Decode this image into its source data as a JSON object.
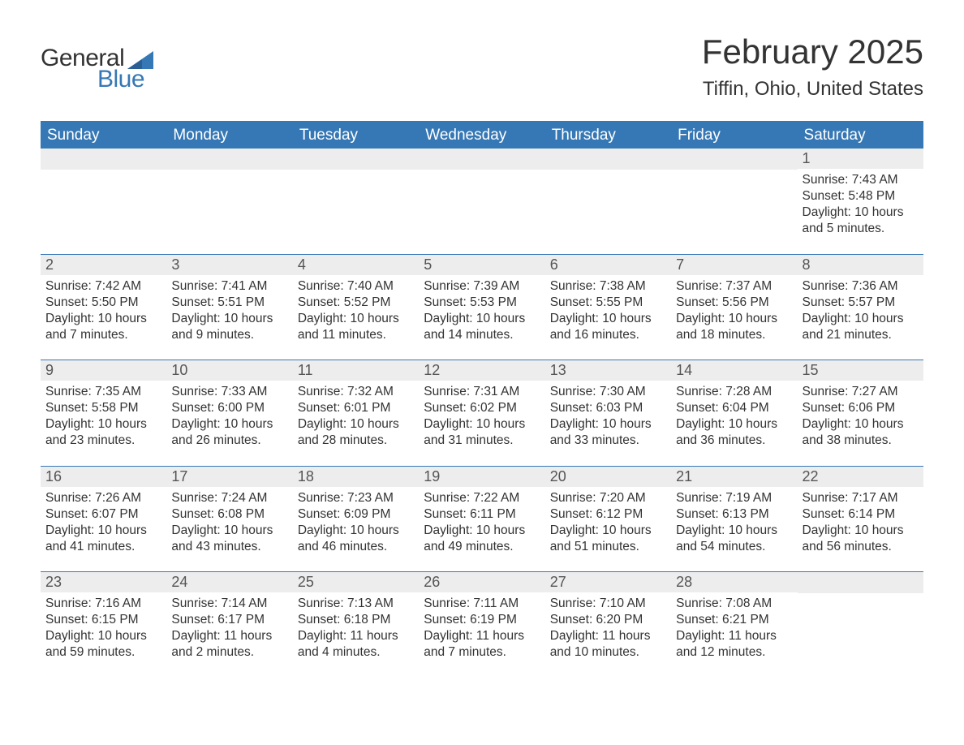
{
  "brand": {
    "part1": "General",
    "part2": "Blue",
    "accent_color": "#3678b5"
  },
  "title": "February 2025",
  "location": "Tiffin, Ohio, United States",
  "colors": {
    "header_bg": "#3678b5",
    "header_text": "#ffffff",
    "daynum_bg": "#ededed",
    "text": "#333333",
    "rule": "#3678b5"
  },
  "fonts": {
    "title_size": 42,
    "location_size": 24,
    "header_size": 19,
    "body_size": 15.5
  },
  "weekdays": [
    "Sunday",
    "Monday",
    "Tuesday",
    "Wednesday",
    "Thursday",
    "Friday",
    "Saturday"
  ],
  "weeks": [
    [
      null,
      null,
      null,
      null,
      null,
      null,
      {
        "n": "1",
        "sr": "Sunrise: 7:43 AM",
        "ss": "Sunset: 5:48 PM",
        "d1": "Daylight: 10 hours",
        "d2": "and 5 minutes."
      }
    ],
    [
      {
        "n": "2",
        "sr": "Sunrise: 7:42 AM",
        "ss": "Sunset: 5:50 PM",
        "d1": "Daylight: 10 hours",
        "d2": "and 7 minutes."
      },
      {
        "n": "3",
        "sr": "Sunrise: 7:41 AM",
        "ss": "Sunset: 5:51 PM",
        "d1": "Daylight: 10 hours",
        "d2": "and 9 minutes."
      },
      {
        "n": "4",
        "sr": "Sunrise: 7:40 AM",
        "ss": "Sunset: 5:52 PM",
        "d1": "Daylight: 10 hours",
        "d2": "and 11 minutes."
      },
      {
        "n": "5",
        "sr": "Sunrise: 7:39 AM",
        "ss": "Sunset: 5:53 PM",
        "d1": "Daylight: 10 hours",
        "d2": "and 14 minutes."
      },
      {
        "n": "6",
        "sr": "Sunrise: 7:38 AM",
        "ss": "Sunset: 5:55 PM",
        "d1": "Daylight: 10 hours",
        "d2": "and 16 minutes."
      },
      {
        "n": "7",
        "sr": "Sunrise: 7:37 AM",
        "ss": "Sunset: 5:56 PM",
        "d1": "Daylight: 10 hours",
        "d2": "and 18 minutes."
      },
      {
        "n": "8",
        "sr": "Sunrise: 7:36 AM",
        "ss": "Sunset: 5:57 PM",
        "d1": "Daylight: 10 hours",
        "d2": "and 21 minutes."
      }
    ],
    [
      {
        "n": "9",
        "sr": "Sunrise: 7:35 AM",
        "ss": "Sunset: 5:58 PM",
        "d1": "Daylight: 10 hours",
        "d2": "and 23 minutes."
      },
      {
        "n": "10",
        "sr": "Sunrise: 7:33 AM",
        "ss": "Sunset: 6:00 PM",
        "d1": "Daylight: 10 hours",
        "d2": "and 26 minutes."
      },
      {
        "n": "11",
        "sr": "Sunrise: 7:32 AM",
        "ss": "Sunset: 6:01 PM",
        "d1": "Daylight: 10 hours",
        "d2": "and 28 minutes."
      },
      {
        "n": "12",
        "sr": "Sunrise: 7:31 AM",
        "ss": "Sunset: 6:02 PM",
        "d1": "Daylight: 10 hours",
        "d2": "and 31 minutes."
      },
      {
        "n": "13",
        "sr": "Sunrise: 7:30 AM",
        "ss": "Sunset: 6:03 PM",
        "d1": "Daylight: 10 hours",
        "d2": "and 33 minutes."
      },
      {
        "n": "14",
        "sr": "Sunrise: 7:28 AM",
        "ss": "Sunset: 6:04 PM",
        "d1": "Daylight: 10 hours",
        "d2": "and 36 minutes."
      },
      {
        "n": "15",
        "sr": "Sunrise: 7:27 AM",
        "ss": "Sunset: 6:06 PM",
        "d1": "Daylight: 10 hours",
        "d2": "and 38 minutes."
      }
    ],
    [
      {
        "n": "16",
        "sr": "Sunrise: 7:26 AM",
        "ss": "Sunset: 6:07 PM",
        "d1": "Daylight: 10 hours",
        "d2": "and 41 minutes."
      },
      {
        "n": "17",
        "sr": "Sunrise: 7:24 AM",
        "ss": "Sunset: 6:08 PM",
        "d1": "Daylight: 10 hours",
        "d2": "and 43 minutes."
      },
      {
        "n": "18",
        "sr": "Sunrise: 7:23 AM",
        "ss": "Sunset: 6:09 PM",
        "d1": "Daylight: 10 hours",
        "d2": "and 46 minutes."
      },
      {
        "n": "19",
        "sr": "Sunrise: 7:22 AM",
        "ss": "Sunset: 6:11 PM",
        "d1": "Daylight: 10 hours",
        "d2": "and 49 minutes."
      },
      {
        "n": "20",
        "sr": "Sunrise: 7:20 AM",
        "ss": "Sunset: 6:12 PM",
        "d1": "Daylight: 10 hours",
        "d2": "and 51 minutes."
      },
      {
        "n": "21",
        "sr": "Sunrise: 7:19 AM",
        "ss": "Sunset: 6:13 PM",
        "d1": "Daylight: 10 hours",
        "d2": "and 54 minutes."
      },
      {
        "n": "22",
        "sr": "Sunrise: 7:17 AM",
        "ss": "Sunset: 6:14 PM",
        "d1": "Daylight: 10 hours",
        "d2": "and 56 minutes."
      }
    ],
    [
      {
        "n": "23",
        "sr": "Sunrise: 7:16 AM",
        "ss": "Sunset: 6:15 PM",
        "d1": "Daylight: 10 hours",
        "d2": "and 59 minutes."
      },
      {
        "n": "24",
        "sr": "Sunrise: 7:14 AM",
        "ss": "Sunset: 6:17 PM",
        "d1": "Daylight: 11 hours",
        "d2": "and 2 minutes."
      },
      {
        "n": "25",
        "sr": "Sunrise: 7:13 AM",
        "ss": "Sunset: 6:18 PM",
        "d1": "Daylight: 11 hours",
        "d2": "and 4 minutes."
      },
      {
        "n": "26",
        "sr": "Sunrise: 7:11 AM",
        "ss": "Sunset: 6:19 PM",
        "d1": "Daylight: 11 hours",
        "d2": "and 7 minutes."
      },
      {
        "n": "27",
        "sr": "Sunrise: 7:10 AM",
        "ss": "Sunset: 6:20 PM",
        "d1": "Daylight: 11 hours",
        "d2": "and 10 minutes."
      },
      {
        "n": "28",
        "sr": "Sunrise: 7:08 AM",
        "ss": "Sunset: 6:21 PM",
        "d1": "Daylight: 11 hours",
        "d2": "and 12 minutes."
      },
      null
    ]
  ]
}
